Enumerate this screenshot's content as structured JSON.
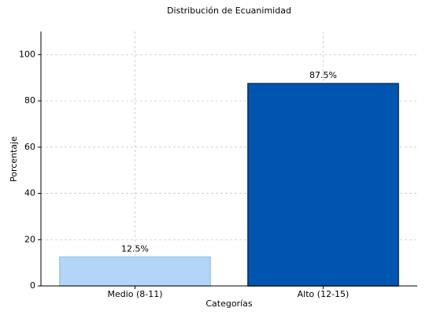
{
  "chart_data": {
    "type": "bar",
    "title": "Distribución de Ecuanimidad",
    "xlabel": "Categorías",
    "ylabel": "Porcentaje",
    "categories": [
      "Medio (8-11)",
      "Alto (12-15)"
    ],
    "values": [
      12.5,
      87.5
    ],
    "value_labels": [
      "12.5%",
      "87.5%"
    ],
    "colors": [
      "#b3d5f7",
      "#0055b0"
    ],
    "edgecolors": [
      "#9cc3ea",
      "#0b2f66"
    ],
    "ylim": [
      0,
      110
    ],
    "yticks": [
      0,
      20,
      40,
      60,
      80,
      100
    ],
    "grid": true
  }
}
